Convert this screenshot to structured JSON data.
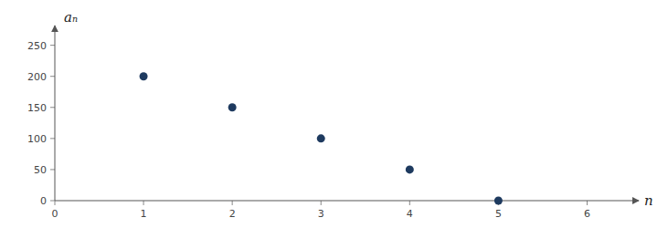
{
  "chart_data": {
    "type": "scatter",
    "x": [
      1,
      2,
      3,
      4,
      5
    ],
    "values": [
      200,
      150,
      100,
      50,
      0
    ],
    "color": "#1e3a5f",
    "xlim": [
      0,
      6.5
    ],
    "ylim": [
      0,
      270
    ],
    "xticks": [
      0,
      1,
      2,
      3,
      4,
      5,
      6
    ],
    "yticks": [
      0,
      50,
      100,
      150,
      200,
      250
    ],
    "xlabel": "n",
    "ylabel": "aₙ"
  }
}
